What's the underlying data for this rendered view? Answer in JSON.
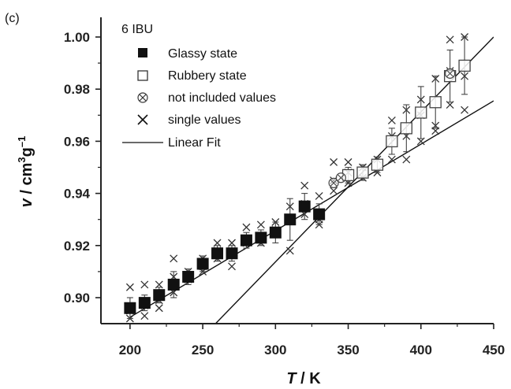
{
  "panel_label": "(c)",
  "chart_data": {
    "type": "scatter",
    "title": "",
    "xlabel_italic": "T",
    "xlabel_rest": " / K",
    "ylabel_italic": "v",
    "ylabel_rest": " / cm",
    "ylabel_sup1": "3",
    "ylabel_g": "g",
    "ylabel_sup2": "–1",
    "xlim": [
      180,
      450
    ],
    "ylim": [
      0.89,
      1.0
    ],
    "xticks": [
      200,
      250,
      300,
      350,
      400,
      450
    ],
    "xtick_labels": [
      "200",
      "250",
      "300",
      "350",
      "400",
      "450"
    ],
    "yticks": [
      0.9,
      0.92,
      0.94,
      0.96,
      0.98,
      1.0
    ],
    "ytick_labels": [
      "0.90",
      "0.92",
      "0.94",
      "0.96",
      "0.98",
      "1.00"
    ],
    "grid": false,
    "legend_position": "top-left",
    "legend_title": "6 IBU",
    "legend": [
      {
        "label": "Glassy state",
        "marker": "filled-square"
      },
      {
        "label": "Rubbery state",
        "marker": "open-square"
      },
      {
        "label": "not included values",
        "marker": "circled-x"
      },
      {
        "label": "single values",
        "marker": "x"
      },
      {
        "label": "Linear Fit",
        "marker": "line"
      }
    ],
    "series": [
      {
        "name": "Glassy state",
        "x": [
          200,
          210,
          220,
          230,
          240,
          250,
          260,
          270,
          280,
          290,
          300,
          310,
          320,
          330
        ],
        "y": [
          0.896,
          0.898,
          0.901,
          0.905,
          0.908,
          0.913,
          0.917,
          0.917,
          0.922,
          0.923,
          0.925,
          0.93,
          0.935,
          0.932
        ],
        "yerr": [
          0.004,
          0.003,
          0.003,
          0.005,
          0.003,
          0.003,
          0.003,
          0.003,
          0.003,
          0.003,
          0.004,
          0.008,
          0.005,
          0.004
        ]
      },
      {
        "name": "Rubbery state",
        "x": [
          350,
          360,
          370,
          380,
          390,
          400,
          410,
          420,
          430
        ],
        "y": [
          0.947,
          0.948,
          0.951,
          0.96,
          0.965,
          0.971,
          0.975,
          0.985,
          0.989
        ],
        "yerr": [
          0.003,
          0.003,
          0.003,
          0.005,
          0.009,
          0.01,
          0.01,
          0.01,
          0.011
        ]
      },
      {
        "name": "not included values",
        "x": [
          340,
          345,
          420
        ],
        "y": [
          0.944,
          0.946,
          0.986
        ]
      },
      {
        "name": "single values",
        "x": [
          200,
          200,
          200,
          210,
          210,
          210,
          220,
          220,
          220,
          230,
          230,
          230,
          240,
          240,
          250,
          250,
          250,
          260,
          260,
          260,
          270,
          270,
          270,
          280,
          280,
          290,
          290,
          300,
          300,
          310,
          310,
          310,
          320,
          320,
          320,
          330,
          330,
          330,
          340,
          340,
          340,
          350,
          350,
          350,
          360,
          360,
          370,
          370,
          380,
          380,
          380,
          390,
          390,
          390,
          400,
          400,
          400,
          410,
          410,
          410,
          420,
          420,
          420,
          430,
          430,
          430
        ],
        "y": [
          0.904,
          0.895,
          0.892,
          0.905,
          0.897,
          0.893,
          0.905,
          0.899,
          0.896,
          0.915,
          0.908,
          0.902,
          0.91,
          0.907,
          0.915,
          0.912,
          0.91,
          0.921,
          0.918,
          0.915,
          0.921,
          0.918,
          0.912,
          0.927,
          0.921,
          0.928,
          0.921,
          0.929,
          0.926,
          0.935,
          0.93,
          0.918,
          0.943,
          0.936,
          0.932,
          0.939,
          0.93,
          0.928,
          0.952,
          0.945,
          0.941,
          0.952,
          0.948,
          0.944,
          0.95,
          0.946,
          0.953,
          0.948,
          0.968,
          0.962,
          0.953,
          0.972,
          0.962,
          0.953,
          0.976,
          0.97,
          0.96,
          0.984,
          0.966,
          0.964,
          0.999,
          0.987,
          0.974,
          1.0,
          0.985,
          0.972
        ]
      },
      {
        "name": "Linear Fit",
        "lines": [
          {
            "x": [
              200,
              450
            ],
            "y": [
              0.8925,
              0.9755
            ]
          },
          {
            "x": [
              257,
              450
            ],
            "y": [
              0.889,
              1.0
            ]
          }
        ]
      }
    ]
  }
}
